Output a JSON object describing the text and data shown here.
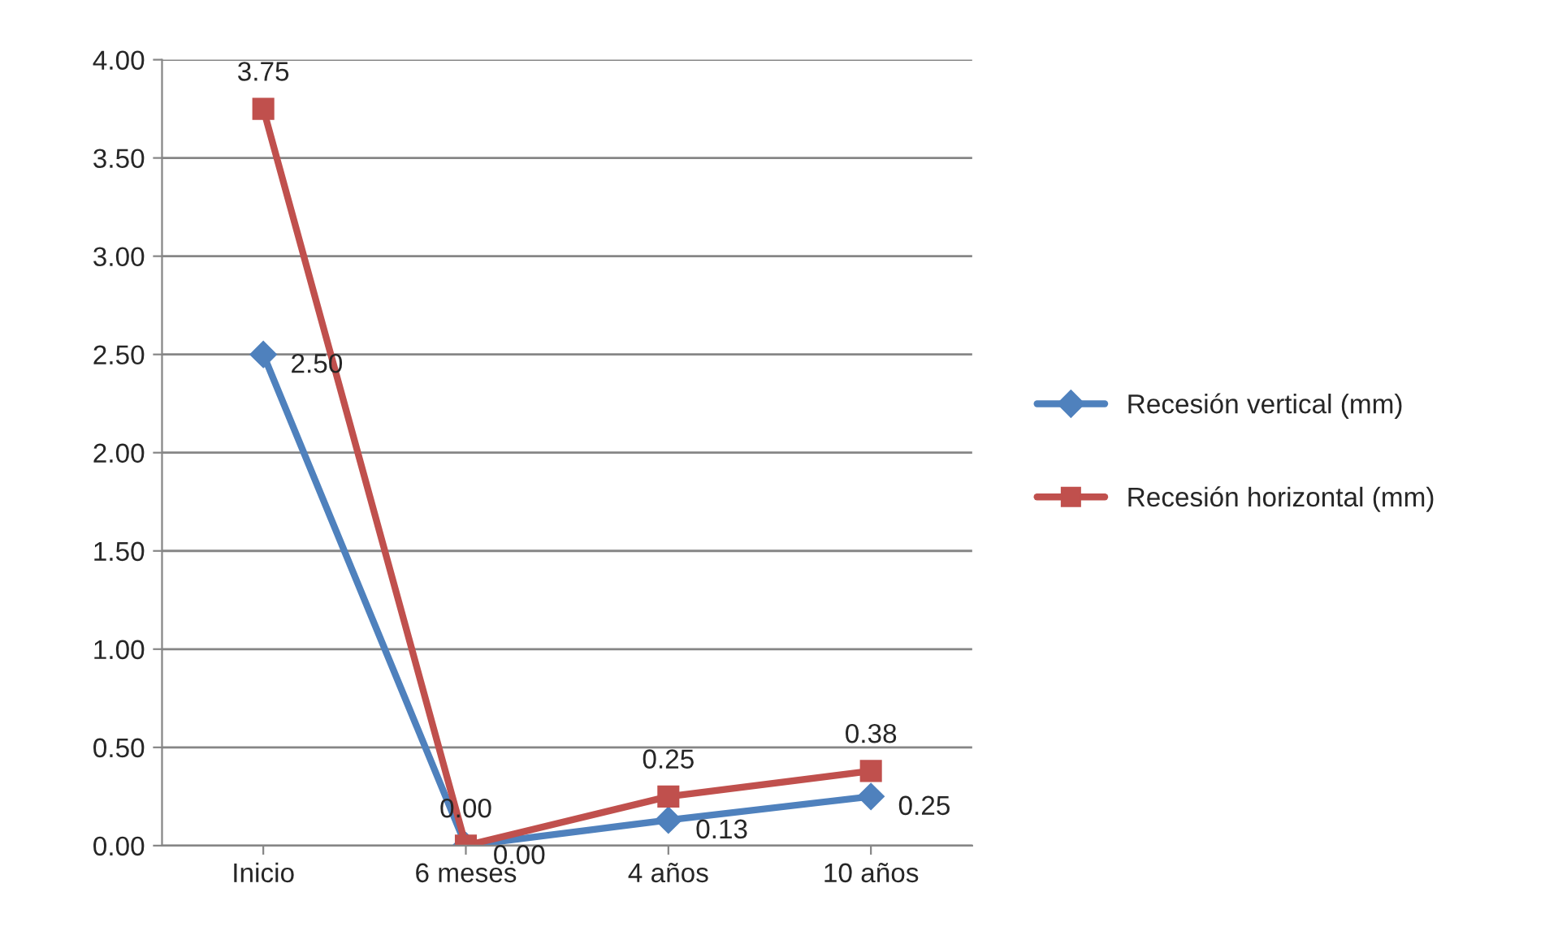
{
  "chart_data": {
    "type": "line",
    "categories": [
      "Inicio",
      "6 meses",
      "4 años",
      "10 años"
    ],
    "series": [
      {
        "name": "Recesión vertical (mm)",
        "color": "#4f81bd",
        "marker": "diamond",
        "values": [
          2.5,
          0.0,
          0.13,
          0.25
        ],
        "value_labels": [
          "2.50",
          "0.00",
          "0.13",
          "0.25"
        ]
      },
      {
        "name": "Recesión horizontal (mm)",
        "color": "#c0504d",
        "marker": "square",
        "values": [
          3.75,
          0.0,
          0.25,
          0.38
        ],
        "value_labels": [
          "3.75",
          "0.00",
          "0.25",
          "0.38"
        ]
      }
    ],
    "ylim": [
      0,
      4
    ],
    "yticks": [
      {
        "value": 0,
        "label": "0.00"
      },
      {
        "value": 0.5,
        "label": "0.50"
      },
      {
        "value": 1,
        "label": "1.00"
      },
      {
        "value": 1.5,
        "label": "1.50"
      },
      {
        "value": 2,
        "label": "2.00"
      },
      {
        "value": 2.5,
        "label": "2.50"
      },
      {
        "value": 3,
        "label": "3.00"
      },
      {
        "value": 3.5,
        "label": "3.50"
      },
      {
        "value": 4,
        "label": "4.00"
      }
    ],
    "grid": "y",
    "legend": "right",
    "line_style": "solid"
  }
}
